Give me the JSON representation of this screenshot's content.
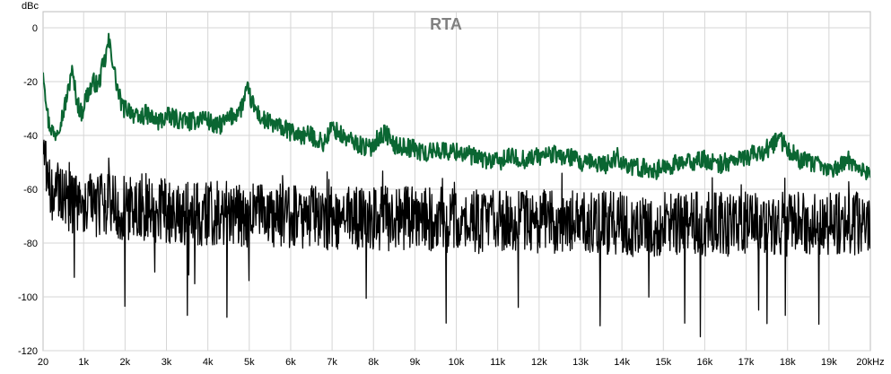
{
  "chart_data": {
    "type": "line",
    "title": "RTA",
    "xlabel": "",
    "ylabel": "",
    "y_unit_label": "dBc",
    "xlim": [
      20,
      20000
    ],
    "ylim": [
      -120,
      6
    ],
    "grid": true,
    "x_ticks": [
      {
        "value": 20,
        "label": "20"
      },
      {
        "value": 1000,
        "label": "1k"
      },
      {
        "value": 2000,
        "label": "2k"
      },
      {
        "value": 3000,
        "label": "3k"
      },
      {
        "value": 4000,
        "label": "4k"
      },
      {
        "value": 5000,
        "label": "5k"
      },
      {
        "value": 6000,
        "label": "6k"
      },
      {
        "value": 7000,
        "label": "7k"
      },
      {
        "value": 8000,
        "label": "8k"
      },
      {
        "value": 9000,
        "label": "9k"
      },
      {
        "value": 10000,
        "label": "10k"
      },
      {
        "value": 11000,
        "label": "11k"
      },
      {
        "value": 12000,
        "label": "12k"
      },
      {
        "value": 13000,
        "label": "13k"
      },
      {
        "value": 14000,
        "label": "14k"
      },
      {
        "value": 15000,
        "label": "15k"
      },
      {
        "value": 16000,
        "label": "16k"
      },
      {
        "value": 17000,
        "label": "17k"
      },
      {
        "value": 18000,
        "label": "18k"
      },
      {
        "value": 19000,
        "label": "19k"
      },
      {
        "value": 20000,
        "label": "20kHz"
      }
    ],
    "y_ticks": [
      {
        "value": 0,
        "label": "0"
      },
      {
        "value": -20,
        "label": "-20"
      },
      {
        "value": -40,
        "label": "-40"
      },
      {
        "value": -60,
        "label": "-60"
      },
      {
        "value": -80,
        "label": "-80"
      },
      {
        "value": -100,
        "label": "-100"
      },
      {
        "value": -120,
        "label": "-120"
      }
    ],
    "series": [
      {
        "color": "#0a6632",
        "x": [
          20,
          150,
          300,
          500,
          650,
          700,
          760,
          850,
          950,
          1050,
          1150,
          1250,
          1350,
          1450,
          1520,
          1600,
          1680,
          1760,
          1850,
          1950,
          2100,
          2300,
          2500,
          2800,
          3000,
          3300,
          3600,
          3900,
          4200,
          4500,
          4800,
          4950,
          5100,
          5300,
          5600,
          5900,
          6200,
          6500,
          6800,
          7000,
          7300,
          7600,
          7900,
          8100,
          8300,
          8500,
          8700,
          9000,
          9300,
          9500,
          9800,
          10100,
          10400,
          10700,
          11000,
          11300,
          11600,
          11900,
          12300,
          12600,
          12800,
          13000,
          13300,
          13600,
          13900,
          14200,
          14500,
          14800,
          15200,
          15600,
          16000,
          16300,
          16500,
          16800,
          17000,
          17200,
          17400,
          17600,
          17800,
          18000,
          18300,
          18700,
          19000,
          19300,
          19500,
          19800,
          20000
        ],
        "y": [
          -15,
          -35,
          -40,
          -32,
          -22,
          -15,
          -20,
          -28,
          -32,
          -26,
          -23,
          -20,
          -22,
          -15,
          -12,
          -5,
          -10,
          -18,
          -25,
          -30,
          -30,
          -34,
          -32,
          -35,
          -33,
          -34,
          -35,
          -33,
          -37,
          -34,
          -30,
          -23,
          -29,
          -34,
          -36,
          -38,
          -40,
          -40,
          -43,
          -37,
          -41,
          -43,
          -45,
          -41,
          -39,
          -44,
          -44,
          -45,
          -47,
          -45,
          -46,
          -46,
          -48,
          -49,
          -50,
          -48,
          -49,
          -48,
          -47,
          -48,
          -48,
          -51,
          -50,
          -51,
          -48,
          -52,
          -52,
          -53,
          -51,
          -50,
          -49,
          -51,
          -50,
          -49,
          -48,
          -47,
          -46,
          -44,
          -41,
          -45,
          -49,
          -51,
          -53,
          -51,
          -49,
          -53,
          -54
        ]
      },
      {
        "color": "#000000",
        "x": [
          20,
          120,
          250,
          500,
          800,
          1200,
          1600,
          2000,
          2500,
          3000,
          3500,
          4000,
          4500,
          5000,
          5500,
          6000,
          6500,
          7000,
          7500,
          8000,
          8500,
          9000,
          9500,
          10000,
          10500,
          11000,
          11500,
          12000,
          12500,
          13000,
          13500,
          14000,
          14500,
          15000,
          15500,
          16000,
          16500,
          17000,
          17500,
          18000,
          18500,
          19000,
          19500,
          20000
        ],
        "y": [
          -45,
          -55,
          -62,
          -64,
          -65,
          -66,
          -66,
          -67,
          -68,
          -68,
          -69,
          -69,
          -69,
          -70,
          -70,
          -70,
          -70,
          -71,
          -71,
          -71,
          -71,
          -71,
          -71,
          -72,
          -72,
          -72,
          -72,
          -72,
          -72,
          -72,
          -72,
          -73,
          -73,
          -73,
          -73,
          -73,
          -73,
          -73,
          -73,
          -73,
          -73,
          -73,
          -73,
          -72
        ]
      }
    ]
  }
}
